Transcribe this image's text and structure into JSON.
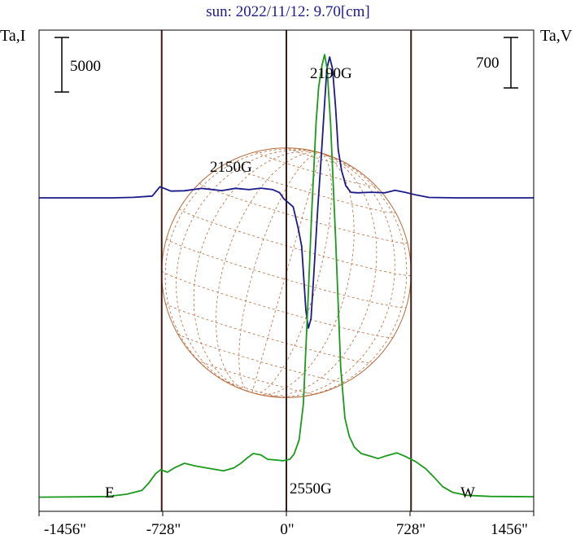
{
  "chart_data": {
    "type": "line",
    "title": "sun: 2022/11/12: 9.70[cm]",
    "left_axis_label": "Ta,I",
    "right_axis_label": "Ta,V",
    "x_ticks": [
      {
        "value": -1456,
        "label": "-1456\""
      },
      {
        "value": -728,
        "label": "-728\""
      },
      {
        "value": 0,
        "label": "0\""
      },
      {
        "value": 728,
        "label": "728\""
      },
      {
        "value": 1456,
        "label": "1456\""
      }
    ],
    "xlim": [
      -1456,
      1456
    ],
    "vertical_markers": [
      -734,
      0,
      734
    ],
    "limb_labels": {
      "east": "E",
      "west": "W"
    },
    "scale_bars": {
      "left_label": "5000",
      "right_label": "700"
    },
    "solar_disk": {
      "center_x": 0,
      "radius": 734,
      "color": "#b86a3a"
    },
    "annotations": [
      {
        "text": "2190G",
        "x": 220
      },
      {
        "text": "2150G",
        "x": -230
      },
      {
        "text": "2550G",
        "x": 120
      }
    ],
    "series": [
      {
        "color": "#1a1a8c",
        "points": [
          [
            -1456,
            0
          ],
          [
            -1020,
            0
          ],
          [
            -900,
            50
          ],
          [
            -790,
            180
          ],
          [
            -745,
            1100
          ],
          [
            -720,
            950
          ],
          [
            -680,
            670
          ],
          [
            -600,
            700
          ],
          [
            -500,
            940
          ],
          [
            -380,
            720
          ],
          [
            -300,
            950
          ],
          [
            -220,
            820
          ],
          [
            -150,
            960
          ],
          [
            -80,
            820
          ],
          [
            -40,
            520
          ],
          [
            -15,
            -100
          ],
          [
            40,
            -900
          ],
          [
            70,
            -3050
          ],
          [
            90,
            -4800
          ],
          [
            115,
            -11200
          ],
          [
            130,
            -12950
          ],
          [
            145,
            -12000
          ],
          [
            160,
            -8000
          ],
          [
            185,
            -1000
          ],
          [
            205,
            4000
          ],
          [
            220,
            8000
          ],
          [
            238,
            12800
          ],
          [
            255,
            14000
          ],
          [
            272,
            12800
          ],
          [
            290,
            9000
          ],
          [
            305,
            4800
          ],
          [
            325,
            2700
          ],
          [
            350,
            1200
          ],
          [
            380,
            550
          ],
          [
            420,
            500
          ],
          [
            500,
            560
          ],
          [
            580,
            500
          ],
          [
            640,
            750
          ],
          [
            700,
            550
          ],
          [
            760,
            300
          ],
          [
            840,
            40
          ],
          [
            1000,
            0
          ],
          [
            1456,
            0
          ]
        ]
      },
      {
        "color": "#1a9a1a",
        "points": [
          [
            -1456,
            50
          ],
          [
            -1060,
            120
          ],
          [
            -940,
            450
          ],
          [
            -850,
            1000
          ],
          [
            -810,
            2000
          ],
          [
            -770,
            3300
          ],
          [
            -740,
            3850
          ],
          [
            -700,
            3500
          ],
          [
            -660,
            4100
          ],
          [
            -600,
            4750
          ],
          [
            -540,
            4400
          ],
          [
            -470,
            4100
          ],
          [
            -420,
            3900
          ],
          [
            -370,
            3700
          ],
          [
            -310,
            4100
          ],
          [
            -270,
            4700
          ],
          [
            -230,
            5500
          ],
          [
            -195,
            6100
          ],
          [
            -150,
            5900
          ],
          [
            -110,
            5300
          ],
          [
            -60,
            5200
          ],
          [
            -20,
            5100
          ],
          [
            20,
            5300
          ],
          [
            45,
            6000
          ],
          [
            75,
            8000
          ],
          [
            100,
            13000
          ],
          [
            125,
            26000
          ],
          [
            150,
            40000
          ],
          [
            175,
            52000
          ],
          [
            190,
            57000
          ],
          [
            210,
            60000
          ],
          [
            225,
            61500
          ],
          [
            240,
            59500
          ],
          [
            260,
            52000
          ],
          [
            290,
            36000
          ],
          [
            320,
            18000
          ],
          [
            345,
            11000
          ],
          [
            370,
            8500
          ],
          [
            400,
            7000
          ],
          [
            440,
            6100
          ],
          [
            500,
            5700
          ],
          [
            540,
            5400
          ],
          [
            590,
            5800
          ],
          [
            650,
            6200
          ],
          [
            700,
            5700
          ],
          [
            760,
            5000
          ],
          [
            820,
            4000
          ],
          [
            870,
            2800
          ],
          [
            920,
            1500
          ],
          [
            980,
            700
          ],
          [
            1060,
            300
          ],
          [
            1200,
            150
          ],
          [
            1456,
            100
          ]
        ]
      }
    ]
  }
}
